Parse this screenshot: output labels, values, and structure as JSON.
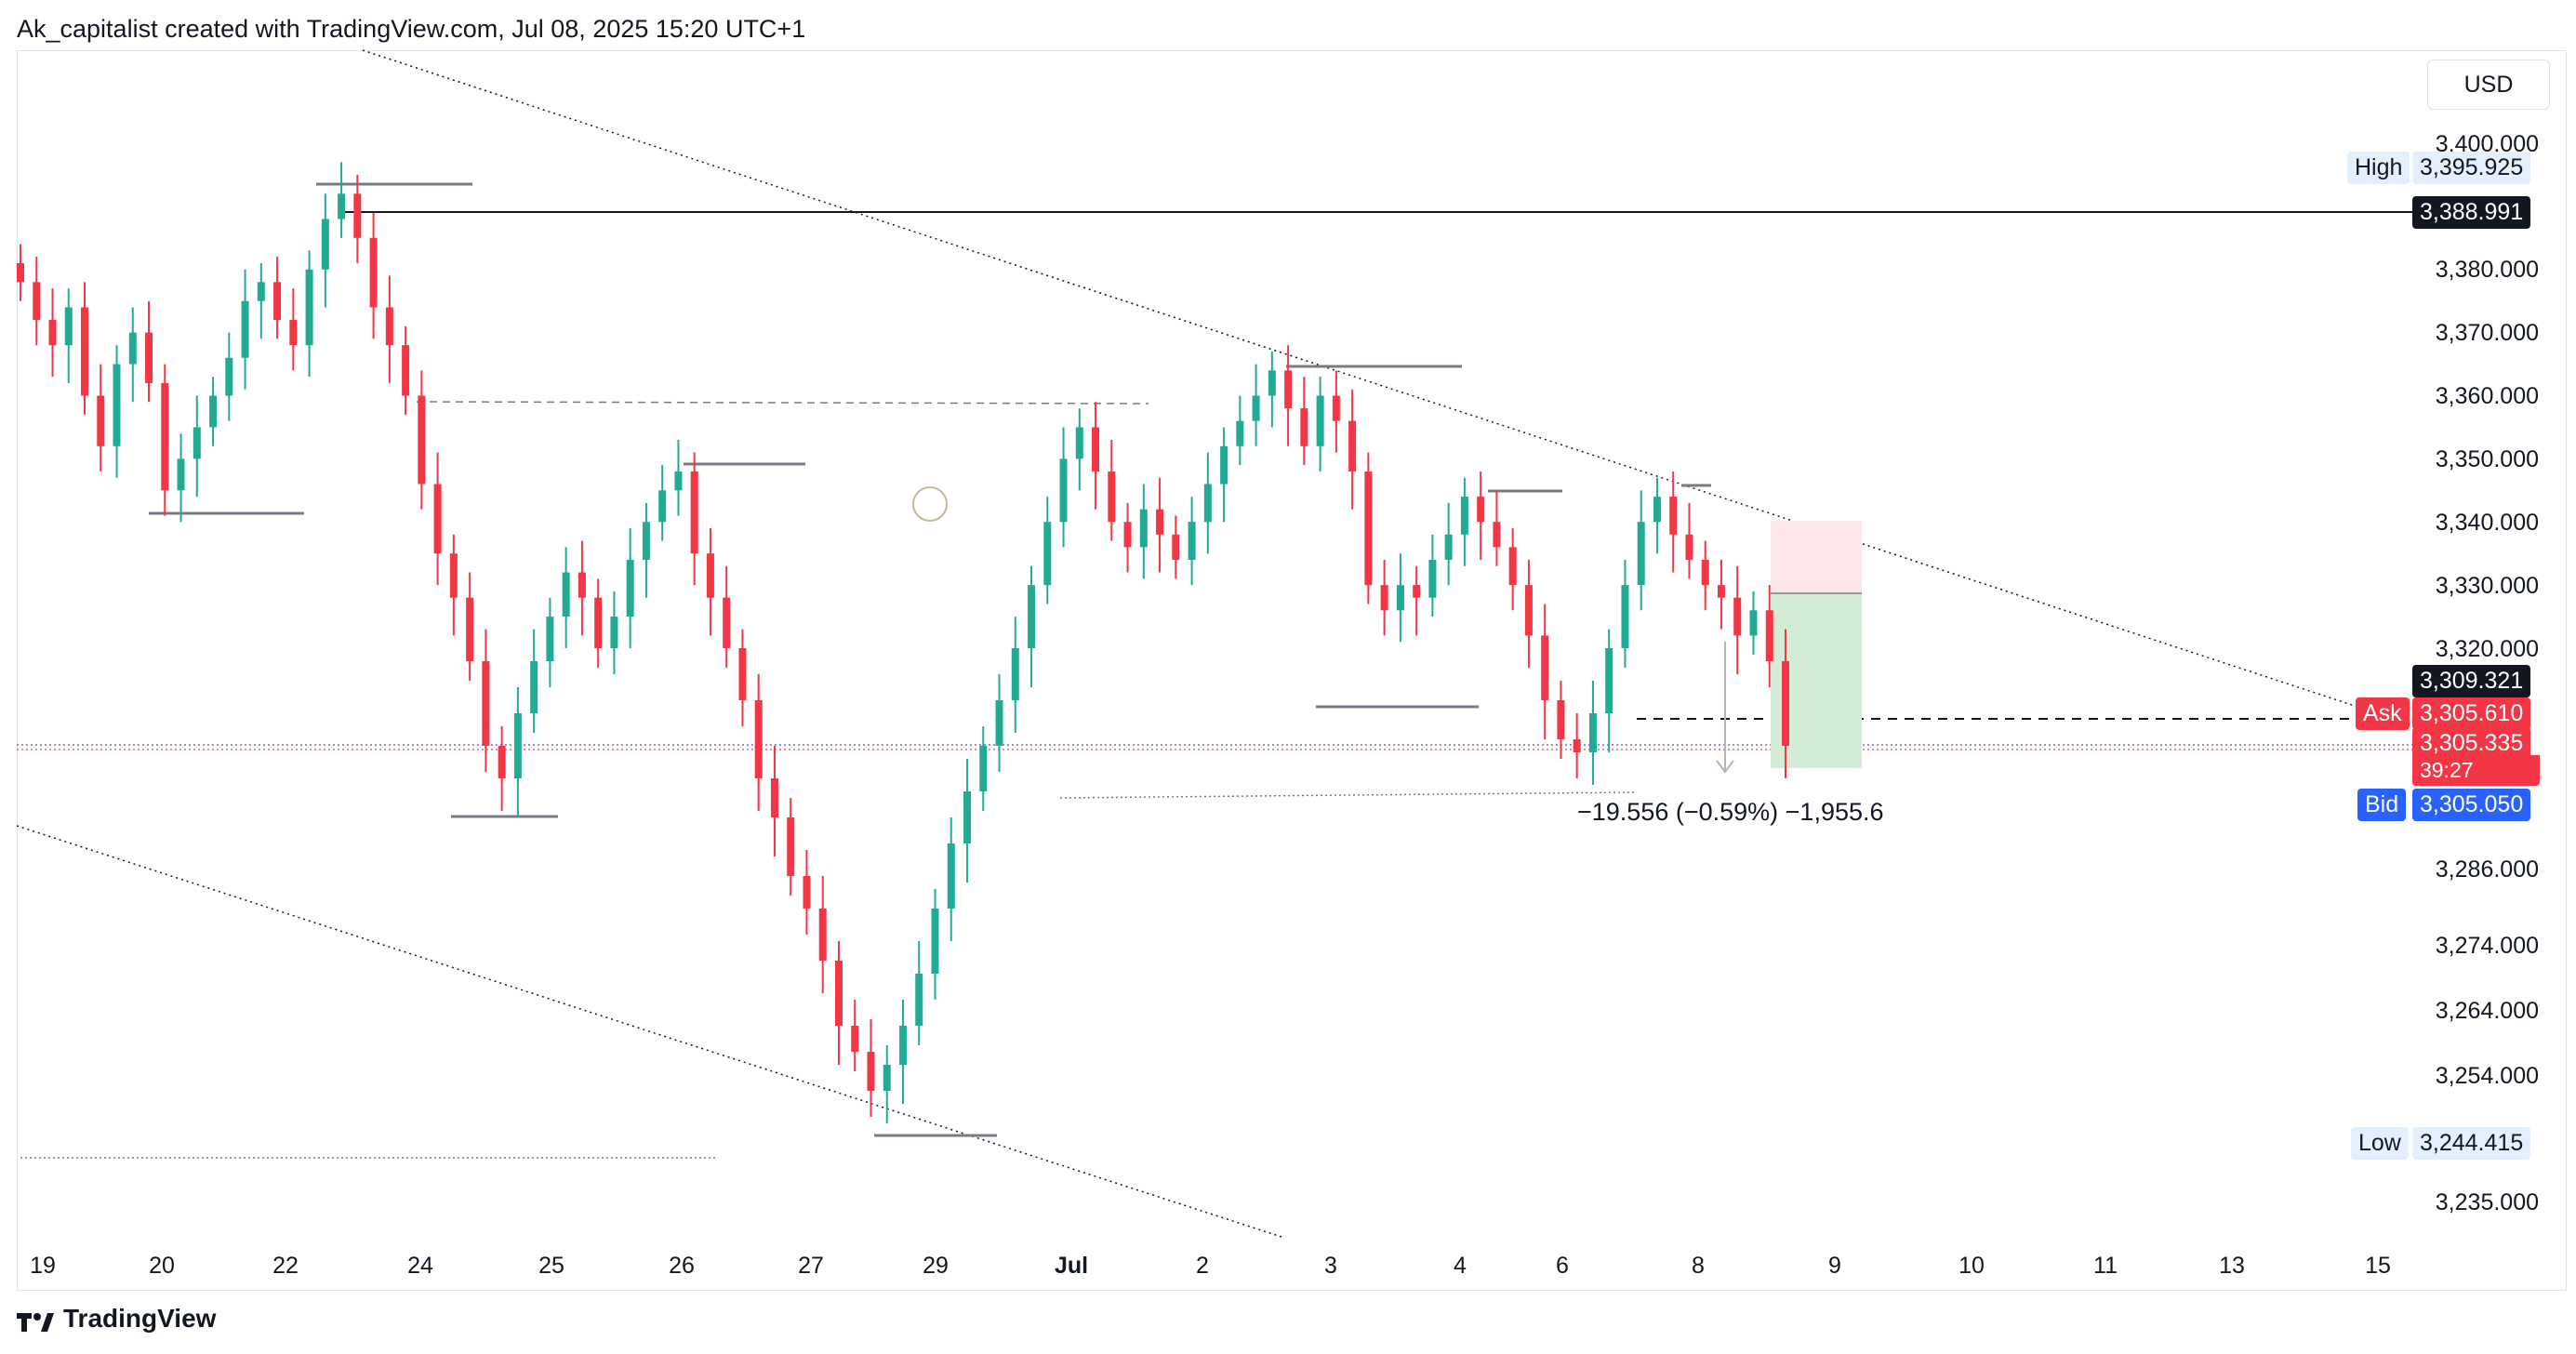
{
  "header": {
    "attribution": "Ak_capitalist created with TradingView.com, Jul 08, 2025 15:20 UTC+1"
  },
  "footer": {
    "brand": "TradingView"
  },
  "currency_button": "USD",
  "colors": {
    "up": "#22ab94",
    "down": "#f23645",
    "ask": "#f23645",
    "bid": "#2962ff",
    "label_bg": "#131722",
    "high_low_bg": "#e3effd",
    "stop_zone": "#fbe6e8",
    "target_zone": "#d4ecd5"
  },
  "price_labels": {
    "high_label": "High",
    "high_value": "3,395.925",
    "line_value": "3,388.991",
    "current_value": "3,309.321",
    "ask_label": "Ask",
    "ask_value": "3,305.610",
    "last_value": "3,305.335",
    "countdown": "39:27",
    "bid_label": "Bid",
    "bid_value": "3,305.050",
    "low_label": "Low",
    "low_value": "3,244.415"
  },
  "measure_text": "−19.556 (−0.59%) −1,955.6",
  "chart_data": {
    "type": "candlestick",
    "symbol_currency": "USD",
    "y_ticks": [
      "3,400.000",
      "3,380.000",
      "3,370.000",
      "3,360.000",
      "3,350.000",
      "3,340.000",
      "3,330.000",
      "3,320.000",
      "3,286.000",
      "3,274.000",
      "3,264.000",
      "3,254.000",
      "3,235.000"
    ],
    "x_ticks": [
      "19",
      "20",
      "22",
      "24",
      "25",
      "26",
      "27",
      "29",
      "Jul",
      "2",
      "3",
      "4",
      "6",
      "8",
      "9",
      "10",
      "11",
      "13",
      "15"
    ],
    "high": 3395.925,
    "low": 3244.415,
    "horizontal_line": 3388.991,
    "bid": 3305.05,
    "ask": 3305.61,
    "last": 3305.335,
    "close_series": [
      3378,
      3372,
      3368,
      3374,
      3360,
      3352,
      3365,
      3370,
      3362,
      3345,
      3350,
      3355,
      3360,
      3366,
      3375,
      3378,
      3372,
      3368,
      3380,
      3388,
      3392,
      3385,
      3374,
      3368,
      3360,
      3346,
      3335,
      3328,
      3318,
      3305,
      3300,
      3310,
      3318,
      3325,
      3332,
      3328,
      3320,
      3325,
      3334,
      3340,
      3345,
      3348,
      3335,
      3328,
      3320,
      3312,
      3300,
      3294,
      3285,
      3280,
      3272,
      3262,
      3258,
      3252,
      3256,
      3262,
      3270,
      3280,
      3290,
      3298,
      3305,
      3312,
      3320,
      3330,
      3340,
      3350,
      3355,
      3348,
      3340,
      3336,
      3342,
      3338,
      3334,
      3340,
      3346,
      3352,
      3356,
      3360,
      3364,
      3358,
      3352,
      3360,
      3356,
      3348,
      3330,
      3326,
      3330,
      3328,
      3334,
      3338,
      3344,
      3340,
      3336,
      3330,
      3322,
      3312,
      3306,
      3304,
      3310,
      3320,
      3330,
      3340,
      3344,
      3338,
      3334,
      3330,
      3328,
      3322,
      3326,
      3318,
      3305
    ]
  }
}
